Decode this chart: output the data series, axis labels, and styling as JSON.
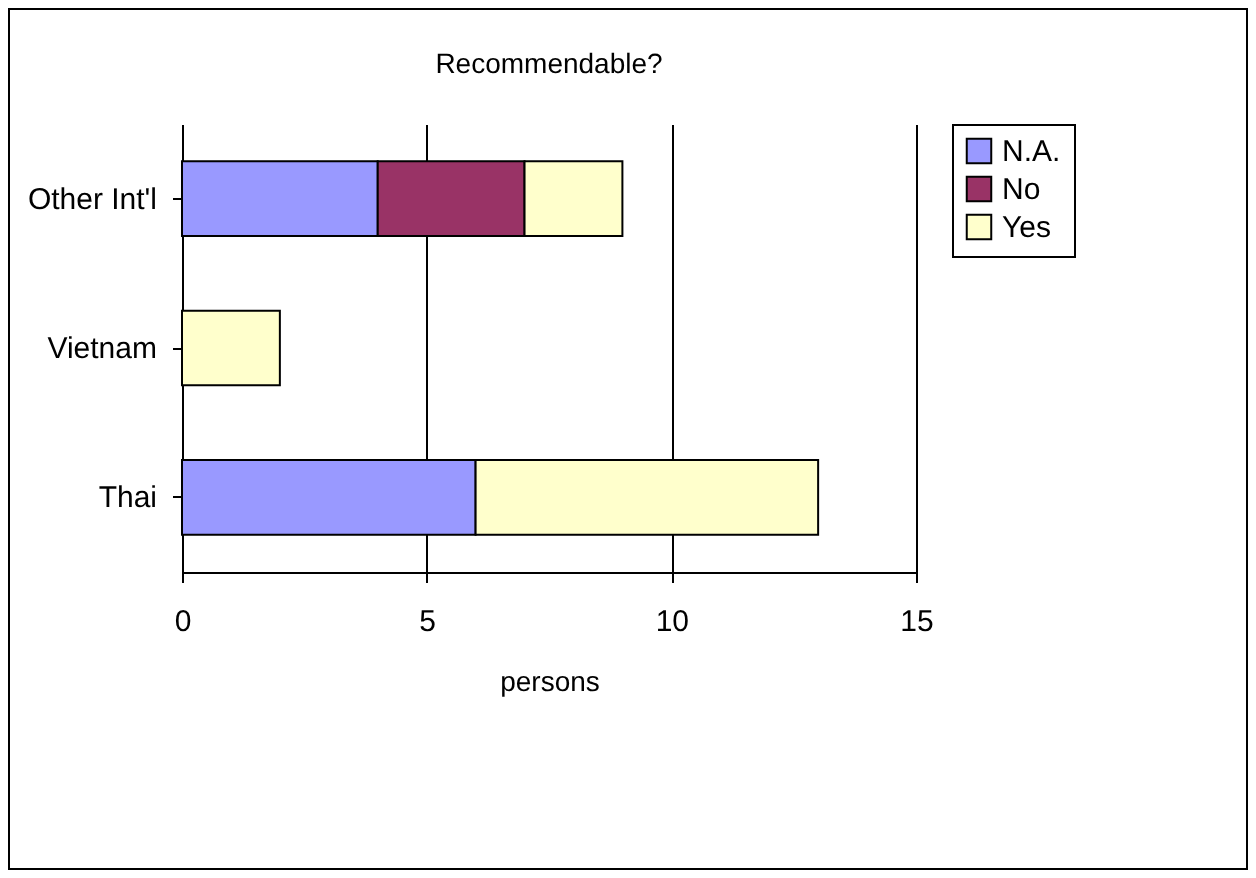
{
  "chart_data": {
    "type": "bar",
    "orientation": "horizontal",
    "stacked": true,
    "title": "Recommendable?",
    "xlabel": "persons",
    "categories": [
      "Other Int'l",
      "Vietnam",
      "Thai"
    ],
    "series": [
      {
        "name": "N.A.",
        "color": "#9999ff",
        "values": [
          4,
          null,
          6
        ]
      },
      {
        "name": "No",
        "color": "#993366",
        "values": [
          3,
          null,
          null
        ]
      },
      {
        "name": "Yes",
        "color": "#ffffcc",
        "values": [
          2,
          2,
          7
        ]
      }
    ],
    "xlim": [
      0,
      15
    ],
    "xticks": [
      0,
      5,
      10,
      15
    ],
    "grid": "x",
    "legend": "right"
  }
}
